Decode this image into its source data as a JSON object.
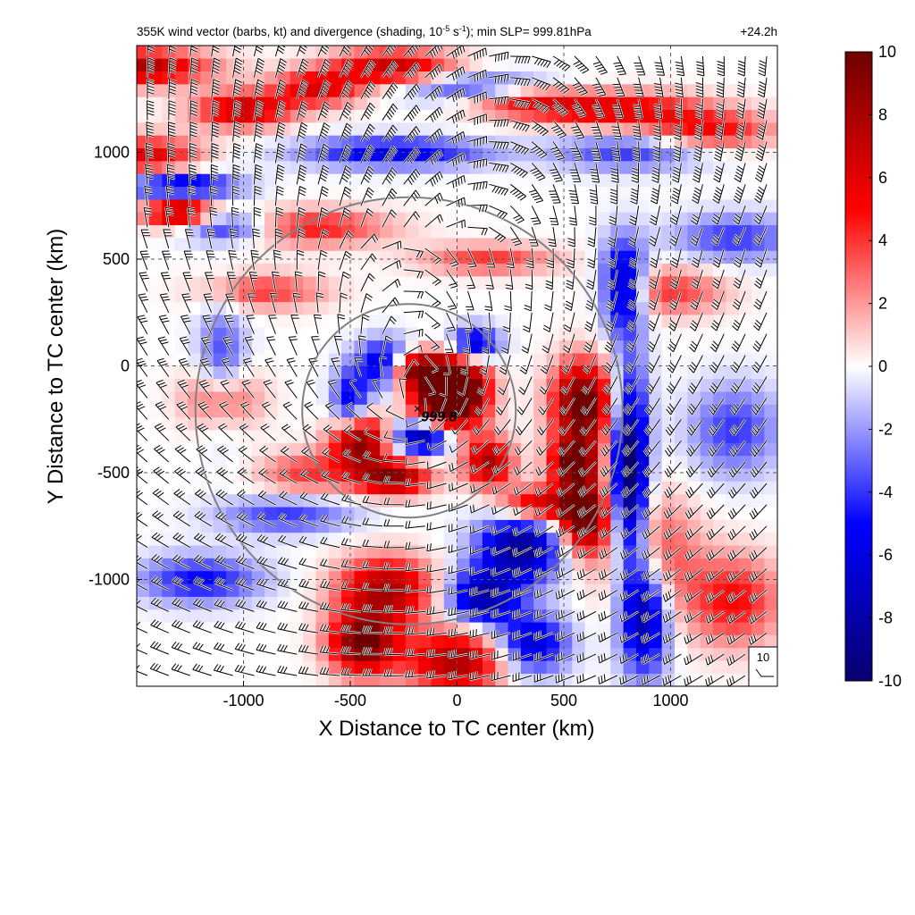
{
  "chart_data": {
    "type": "heatmap",
    "title": "355K wind vector (barbs, kt) and divergence (shading, 10",
    "title_sup1": "-5",
    "title_mid": " s",
    "title_sup2": "-1",
    "title_tail": "); min SLP= 999.81hPa",
    "time_label": "+24.2h",
    "xlabel": "X Distance to TC center (km)",
    "ylabel": "Y Distance to TC center (km)",
    "xlim": [
      -1500,
      1500
    ],
    "ylim": [
      -1500,
      1500
    ],
    "xticks": [
      -1000,
      -500,
      0,
      500,
      1000
    ],
    "yticks": [
      -1000,
      -500,
      0,
      500,
      1000
    ],
    "grid": true,
    "colorbar": {
      "range": [
        -10,
        10
      ],
      "ticks": [
        10,
        8,
        6,
        4,
        2,
        0,
        -2,
        -4,
        -6,
        -8,
        -10
      ],
      "colors": [
        "#08006e",
        "#0000ff",
        "#ffffff",
        "#ff0000",
        "#6e0000"
      ]
    },
    "center_marker": {
      "x": -185,
      "y": -200,
      "label": "999.8"
    },
    "range_circles": [
      {
        "cx": -225,
        "cy": -210,
        "r_km": 500
      },
      {
        "cx": -225,
        "cy": -210,
        "r_km": 1000
      }
    ],
    "reference_barb": {
      "label": "10",
      "speed_kt": 10
    },
    "divergence_features": [
      {
        "x": -1500,
        "y": 1400,
        "sx": 240,
        "sy": 60,
        "v": 8
      },
      {
        "x": -1450,
        "y": 980,
        "sx": 180,
        "sy": 70,
        "v": 6
      },
      {
        "x": -1300,
        "y": 720,
        "sx": 120,
        "sy": 60,
        "v": 9
      },
      {
        "x": -1000,
        "y": 1200,
        "sx": 160,
        "sy": 60,
        "v": 7
      },
      {
        "x": -650,
        "y": 1300,
        "sx": 150,
        "sy": 60,
        "v": 6
      },
      {
        "x": -300,
        "y": 1400,
        "sx": 200,
        "sy": 60,
        "v": 7
      },
      {
        "x": 300,
        "y": 1250,
        "sx": 200,
        "sy": 50,
        "v": 5
      },
      {
        "x": 750,
        "y": 1200,
        "sx": 300,
        "sy": 60,
        "v": 6
      },
      {
        "x": 1200,
        "y": 1100,
        "sx": 200,
        "sy": 60,
        "v": 5
      },
      {
        "x": -700,
        "y": 650,
        "sx": 260,
        "sy": 60,
        "v": 5
      },
      {
        "x": -900,
        "y": 350,
        "sx": 200,
        "sy": 60,
        "v": 4
      },
      {
        "x": 150,
        "y": 500,
        "sx": 220,
        "sy": 50,
        "v": 4
      },
      {
        "x": 1000,
        "y": 350,
        "sx": 180,
        "sy": 80,
        "v": 4
      },
      {
        "x": -1100,
        "y": -150,
        "sx": 120,
        "sy": 100,
        "v": 5
      },
      {
        "x": -700,
        "y": -500,
        "sx": 150,
        "sy": 70,
        "v": 4
      },
      {
        "x": -190,
        "y": -20,
        "sx": 110,
        "sy": 60,
        "v": 12
      },
      {
        "x": 30,
        "y": -110,
        "sx": 90,
        "sy": 120,
        "v": 11
      },
      {
        "x": -100,
        "y": -180,
        "sx": 90,
        "sy": 80,
        "v": 9
      },
      {
        "x": -460,
        "y": -350,
        "sx": 90,
        "sy": 90,
        "v": 10
      },
      {
        "x": -300,
        "y": -520,
        "sx": 120,
        "sy": 60,
        "v": 9
      },
      {
        "x": 150,
        "y": -450,
        "sx": 80,
        "sy": 80,
        "v": 8
      },
      {
        "x": 590,
        "y": -180,
        "sx": 100,
        "sy": 140,
        "v": 11
      },
      {
        "x": 550,
        "y": -450,
        "sx": 80,
        "sy": 80,
        "v": 9
      },
      {
        "x": 590,
        "y": -700,
        "sx": 80,
        "sy": 120,
        "v": 11
      },
      {
        "x": 380,
        "y": -650,
        "sx": 120,
        "sy": 60,
        "v": 7
      },
      {
        "x": -330,
        "y": -1050,
        "sx": 160,
        "sy": 110,
        "v": 8
      },
      {
        "x": -440,
        "y": -1300,
        "sx": 110,
        "sy": 100,
        "v": 10
      },
      {
        "x": 0,
        "y": -1380,
        "sx": 170,
        "sy": 100,
        "v": 8
      },
      {
        "x": 900,
        "y": -900,
        "sx": 150,
        "sy": 200,
        "v": 5
      },
      {
        "x": 1300,
        "y": -1100,
        "sx": 150,
        "sy": 150,
        "v": 5
      },
      {
        "x": -1300,
        "y": 840,
        "sx": 180,
        "sy": 50,
        "v": -8
      },
      {
        "x": -1100,
        "y": 650,
        "sx": 180,
        "sy": 50,
        "v": -6
      },
      {
        "x": -300,
        "y": 1000,
        "sx": 300,
        "sy": 50,
        "v": -6
      },
      {
        "x": 100,
        "y": 1300,
        "sx": 250,
        "sy": 50,
        "v": -5
      },
      {
        "x": 800,
        "y": 1000,
        "sx": 250,
        "sy": 60,
        "v": -4
      },
      {
        "x": 780,
        "y": 380,
        "sx": 70,
        "sy": 150,
        "v": -8
      },
      {
        "x": -330,
        "y": 0,
        "sx": 90,
        "sy": 80,
        "v": -9
      },
      {
        "x": -160,
        "y": -330,
        "sx": 90,
        "sy": 60,
        "v": -9
      },
      {
        "x": 80,
        "y": 100,
        "sx": 80,
        "sy": 60,
        "v": -8
      },
      {
        "x": -500,
        "y": -180,
        "sx": 60,
        "sy": 110,
        "v": -6
      },
      {
        "x": 810,
        "y": -500,
        "sx": 60,
        "sy": 330,
        "v": -11
      },
      {
        "x": 880,
        "y": -1150,
        "sx": 80,
        "sy": 200,
        "v": -9
      },
      {
        "x": 300,
        "y": -850,
        "sx": 140,
        "sy": 110,
        "v": -9
      },
      {
        "x": 120,
        "y": -1080,
        "sx": 120,
        "sy": 90,
        "v": -8
      },
      {
        "x": 350,
        "y": -1300,
        "sx": 120,
        "sy": 100,
        "v": -7
      },
      {
        "x": -800,
        "y": -700,
        "sx": 220,
        "sy": 60,
        "v": -4
      },
      {
        "x": -1200,
        "y": -1000,
        "sx": 200,
        "sy": 80,
        "v": -5
      },
      {
        "x": -1100,
        "y": 0,
        "sx": 80,
        "sy": 200,
        "v": -4
      },
      {
        "x": 1300,
        "y": -300,
        "sx": 150,
        "sy": 150,
        "v": -4
      },
      {
        "x": 1300,
        "y": 600,
        "sx": 200,
        "sy": 80,
        "v": -4
      }
    ]
  }
}
